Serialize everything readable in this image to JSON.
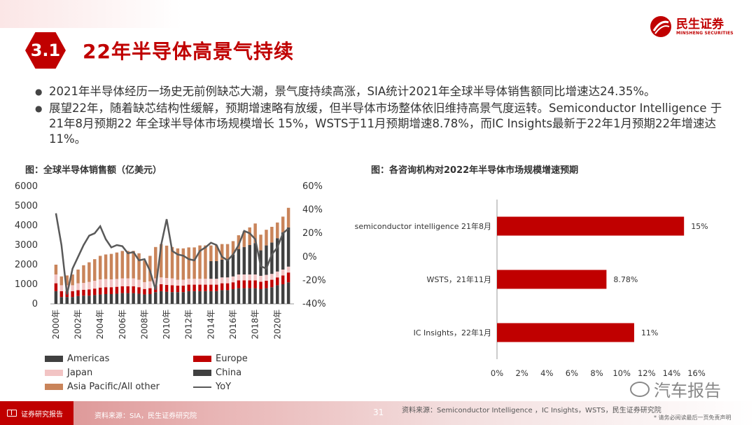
{
  "header": {
    "section_number": "3.1",
    "title": "22年半导体高景气持续",
    "logo_cn": "民生证券",
    "logo_en": "MINSHENG SECURITIES"
  },
  "bullets": [
    "2021年半导体经历一场史无前例缺芯大潮，景气度持续高涨，SIA统计2021年全球半导体销售额同比增速达24.35%。",
    "展望22年，随着缺芯结构性缓解，预期增速略有放缓，但半导体市场整体依旧维持高景气度运转。Semiconductor Intelligence 于21年8月预期22 年全球半导体市场规模增长 15%，WSTS于11月预期增速8.78%，而IC Insights最新于22年1月预期22年增速达11%。"
  ],
  "colors": {
    "accent": "#c00000",
    "americas": "#404040",
    "europe": "#c00000",
    "japan": "#f2c4c4",
    "china": "#404040",
    "asia": "#c9845a",
    "yoy": "#595959",
    "bar": "#c00000"
  },
  "chart_data": [
    {
      "type": "bar",
      "stacked": true,
      "title": "图：全球半导体销售额（亿美元）",
      "x_tick_labels": [
        "2000年",
        "2002年",
        "2004年",
        "2006年",
        "2008年",
        "2010年",
        "2012年",
        "2014年",
        "2016年",
        "2018年",
        "2020年"
      ],
      "x": [
        2000,
        2000.5,
        2001,
        2001.5,
        2002,
        2002.5,
        2003,
        2003.5,
        2004,
        2004.5,
        2005,
        2005.5,
        2006,
        2006.5,
        2007,
        2007.5,
        2008,
        2008.5,
        2009,
        2009.5,
        2010,
        2010.5,
        2011,
        2011.5,
        2012,
        2012.5,
        2013,
        2013.5,
        2014,
        2014.5,
        2015,
        2015.5,
        2016,
        2016.5,
        2017,
        2017.5,
        2018,
        2018.5,
        2019,
        2019.5,
        2020,
        2020.5,
        2021
      ],
      "ylim": [
        0,
        6000
      ],
      "yticks": [
        "6000",
        "5000",
        "4000",
        "3000",
        "2000",
        "1000",
        "0"
      ],
      "y2lim": [
        -40,
        60
      ],
      "y2ticks": [
        "60%",
        "40%",
        "20%",
        "0%",
        "-20%",
        "-40%"
      ],
      "series": [
        {
          "name": "Americas",
          "axis": "y",
          "values": [
            650,
            350,
            350,
            350,
            400,
            420,
            420,
            450,
            480,
            500,
            500,
            520,
            550,
            550,
            550,
            520,
            480,
            500,
            600,
            650,
            620,
            600,
            600,
            600,
            650,
            650,
            650,
            650,
            650,
            650,
            700,
            700,
            750,
            800,
            800,
            800,
            800,
            750,
            800,
            850,
            950,
            1000,
            1100
          ]
        },
        {
          "name": "Europe",
          "axis": "y",
          "values": [
            400,
            300,
            300,
            300,
            300,
            300,
            320,
            330,
            350,
            350,
            350,
            350,
            350,
            350,
            350,
            330,
            280,
            300,
            350,
            350,
            350,
            350,
            330,
            330,
            330,
            330,
            330,
            330,
            330,
            330,
            350,
            350,
            350,
            400,
            400,
            400,
            400,
            380,
            380,
            380,
            400,
            450,
            500
          ]
        },
        {
          "name": "Japan",
          "axis": "y",
          "values": [
            450,
            300,
            300,
            300,
            350,
            350,
            380,
            400,
            420,
            420,
            400,
            400,
            400,
            400,
            400,
            380,
            350,
            350,
            350,
            350,
            350,
            350,
            300,
            300,
            300,
            300,
            300,
            300,
            300,
            300,
            300,
            300,
            300,
            300,
            300,
            300,
            300,
            300,
            300,
            300,
            300,
            300,
            300
          ]
        },
        {
          "name": "China",
          "axis": "y",
          "values": [
            0,
            0,
            0,
            0,
            0,
            0,
            0,
            0,
            0,
            0,
            0,
            0,
            0,
            0,
            0,
            0,
            0,
            0,
            0,
            0,
            0,
            0,
            0,
            0,
            0,
            0,
            0,
            0,
            900,
            900,
            900,
            900,
            1100,
            1300,
            1400,
            1500,
            1600,
            1300,
            1500,
            1600,
            1700,
            1900,
            2000
          ]
        },
        {
          "name": "Asia Pacific/All other",
          "axis": "y",
          "values": [
            500,
            450,
            500,
            550,
            700,
            900,
            1000,
            1100,
            1200,
            1250,
            1300,
            1350,
            1400,
            1400,
            1400,
            1350,
            1100,
            1300,
            1600,
            1700,
            1650,
            1600,
            1600,
            1600,
            1600,
            1600,
            1700,
            1700,
            800,
            800,
            800,
            800,
            700,
            700,
            800,
            900,
            1000,
            800,
            800,
            800,
            800,
            800,
            1000
          ]
        },
        {
          "name": "YoY",
          "axis": "y2",
          "type": "line",
          "values": [
            37,
            10,
            -32,
            -10,
            0,
            10,
            18,
            20,
            26,
            15,
            8,
            10,
            9,
            3,
            4,
            -3,
            -2,
            -12,
            -28,
            10,
            32,
            5,
            2,
            1,
            -2,
            -3,
            5,
            8,
            12,
            10,
            0,
            -3,
            2,
            10,
            22,
            20,
            15,
            -8,
            -10,
            2,
            8,
            20,
            24
          ]
        }
      ],
      "legend_placement": "bottom",
      "grid": false
    },
    {
      "type": "bar",
      "orientation": "horizontal",
      "title": "图：各咨询机构对2022年半导体市场规模增速预期",
      "categories": [
        "semiconductor intelligence 21年8月",
        "WSTS，21年11月",
        "IC Insights，22年1月"
      ],
      "values": [
        15,
        8.78,
        11
      ],
      "value_labels": [
        "15%",
        "8.78%",
        "11%"
      ],
      "xlim": [
        0,
        16
      ],
      "xticks": [
        "0%",
        "2%",
        "4%",
        "6%",
        "8%",
        "10%",
        "12%",
        "14%",
        "16%"
      ],
      "grid": false
    }
  ],
  "footer": {
    "left_label": "证券研究报告",
    "source_left": "资料来源：SIA，民生证券研究院",
    "page_number": "31",
    "source_right": "资料来源：Semiconductor Intelligence ，IC Insights，WSTS，民生证券研究院",
    "disclaimer": "* 请务必阅读最后一页免责声明",
    "watermark": "汽车报告"
  }
}
